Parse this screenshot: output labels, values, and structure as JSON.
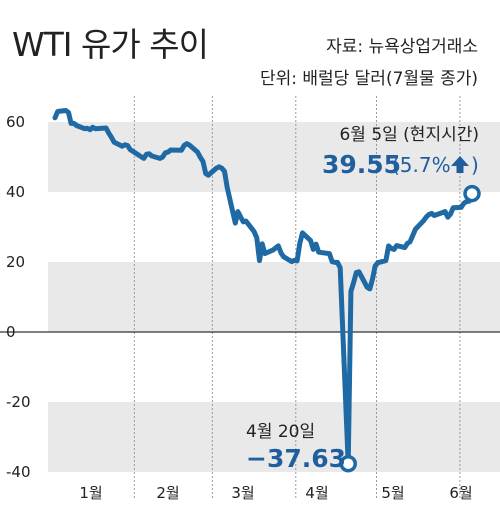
{
  "header": {
    "title": "WTI 유가 추이",
    "source": "자료: 뉴욕상업거래소",
    "unit": "단위: 배럴당 달러(7월물 종가)"
  },
  "chart_data": {
    "type": "line",
    "title": "WTI 유가 추이",
    "xlabel": "",
    "ylabel": "",
    "ylim": [
      -40,
      60
    ],
    "yticks": [
      60,
      40,
      20,
      0,
      -20,
      -40
    ],
    "xticks": [
      "1월",
      "2월",
      "3월",
      "4월",
      "5월",
      "6월"
    ],
    "grid": "alternating horizontal bands, dashed vertical month separators",
    "colors": {
      "line": "#1f6aa5",
      "band": "#e9e9e9",
      "accent": "#1f5f9e"
    },
    "x": [
      "01-02",
      "01-03",
      "01-06",
      "01-07",
      "01-08",
      "01-09",
      "01-10",
      "01-13",
      "01-14",
      "01-15",
      "01-16",
      "01-17",
      "01-21",
      "01-22",
      "01-23",
      "01-24",
      "01-27",
      "01-28",
      "01-29",
      "01-30",
      "01-31",
      "02-03",
      "02-04",
      "02-05",
      "02-06",
      "02-07",
      "02-10",
      "02-11",
      "02-12",
      "02-13",
      "02-14",
      "02-18",
      "02-19",
      "02-20",
      "02-21",
      "02-24",
      "02-25",
      "02-26",
      "02-27",
      "02-28",
      "03-02",
      "03-03",
      "03-04",
      "03-05",
      "03-06",
      "03-09",
      "03-10",
      "03-11",
      "03-12",
      "03-13",
      "03-16",
      "03-17",
      "03-18",
      "03-19",
      "03-20",
      "03-23",
      "03-24",
      "03-25",
      "03-26",
      "03-27",
      "03-30",
      "03-31",
      "04-01",
      "04-02",
      "04-03",
      "04-06",
      "04-07",
      "04-08",
      "04-09",
      "04-13",
      "04-14",
      "04-15",
      "04-16",
      "04-17",
      "04-20",
      "04-21",
      "04-22",
      "04-23",
      "04-24",
      "04-27",
      "04-28",
      "04-29",
      "04-30",
      "05-01",
      "05-04",
      "05-05",
      "05-06",
      "05-07",
      "05-08",
      "05-11",
      "05-12",
      "05-13",
      "05-14",
      "05-15",
      "05-18",
      "05-19",
      "05-20",
      "05-21",
      "05-22",
      "05-26",
      "05-27",
      "05-28",
      "05-29",
      "06-01",
      "06-02",
      "06-03",
      "06-04",
      "06-05"
    ],
    "series": [
      {
        "values": [
          61.2,
          63.0,
          63.3,
          62.7,
          59.6,
          59.6,
          59.0,
          58.1,
          58.2,
          57.8,
          58.5,
          58.1,
          58.3,
          56.8,
          55.6,
          54.2,
          53.1,
          53.5,
          53.3,
          52.1,
          51.6,
          50.1,
          49.6,
          50.8,
          50.9,
          50.3,
          49.6,
          50.0,
          51.2,
          51.4,
          52.0,
          51.9,
          53.3,
          53.8,
          53.4,
          51.4,
          49.9,
          48.7,
          45.3,
          44.8,
          46.8,
          47.2,
          46.8,
          45.9,
          41.3,
          31.1,
          34.4,
          32.9,
          31.5,
          31.7,
          28.7,
          26.9,
          20.4,
          25.2,
          22.4,
          23.4,
          24.0,
          24.6,
          22.6,
          21.5,
          20.1,
          20.5,
          20.3,
          25.3,
          28.3,
          26.1,
          23.6,
          25.1,
          22.8,
          22.4,
          20.1,
          19.9,
          19.9,
          18.3,
          -37.63,
          11.6,
          14.1,
          17.0,
          17.2,
          12.8,
          12.3,
          15.1,
          18.8,
          19.8,
          20.4,
          24.6,
          23.9,
          23.6,
          24.7,
          24.1,
          25.3,
          25.8,
          27.6,
          29.4,
          31.8,
          32.9,
          33.6,
          33.9,
          33.3,
          34.4,
          32.8,
          33.7,
          35.5,
          35.6,
          36.8,
          37.3,
          37.4,
          39.55
        ]
      }
    ],
    "annotations": [
      {
        "x": "06-05",
        "y": 39.55,
        "label": "6월 5일 (현지시간)",
        "value": "39.55",
        "change": "(5.7%",
        "arrow": "up"
      },
      {
        "x": "04-20",
        "y": -37.63,
        "label": "4월 20일",
        "value": "−37.63"
      }
    ]
  }
}
